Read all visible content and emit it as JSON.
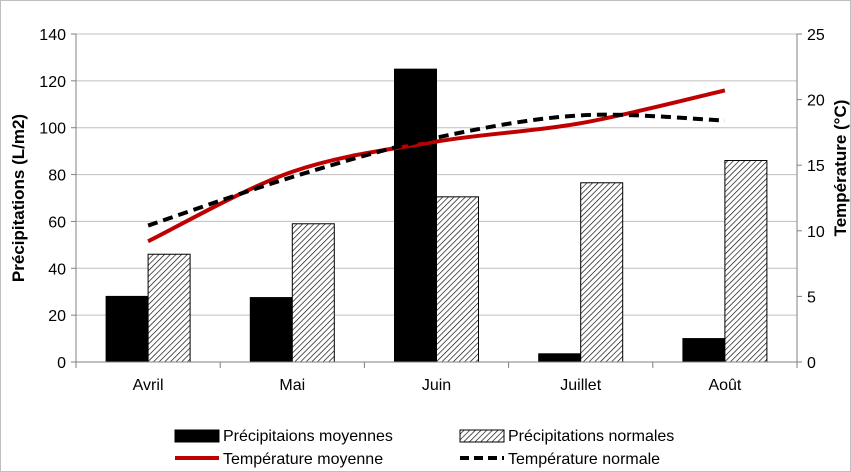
{
  "chart_data": {
    "type": "bar",
    "categories": [
      "Avril",
      "Mai",
      "Juin",
      "Juillet",
      "Août"
    ],
    "bar_series": [
      {
        "name": "Précipitaions moyennes",
        "values": [
          28,
          27.5,
          125,
          3.5,
          10
        ],
        "fill": "#000000"
      },
      {
        "name": "Précipitations normales",
        "values": [
          46,
          59,
          70.5,
          76.5,
          86
        ],
        "fill": "hatch"
      }
    ],
    "line_series": [
      {
        "name": "Température  moyenne",
        "values": [
          9.2,
          14.5,
          16.8,
          18.2,
          20.7
        ],
        "color": "#c00000",
        "dash": "solid"
      },
      {
        "name": "Température normale",
        "values": [
          10.4,
          14.1,
          17.1,
          18.8,
          18.4
        ],
        "color": "#000000",
        "dash": "dashed"
      }
    ],
    "ylabel": "Précipitations (L/m2)",
    "y2label": "Température (°C)",
    "ylim": [
      0,
      140
    ],
    "yticks": [
      0,
      20,
      40,
      60,
      80,
      100,
      120,
      140
    ],
    "y2lim": [
      0,
      25
    ],
    "y2ticks": [
      0,
      5,
      10,
      15,
      20,
      25
    ],
    "grid": "horizontal",
    "legend_position": "bottom"
  }
}
